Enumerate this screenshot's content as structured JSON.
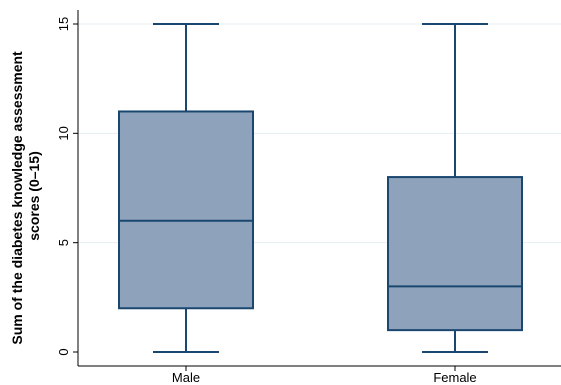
{
  "chart_data": {
    "type": "box",
    "title": "",
    "xlabel": "",
    "ylabel_lines": [
      "Sum of the diabetes knowledge assessment",
      "scores (0–15)"
    ],
    "categories": [
      "Male",
      "Female"
    ],
    "boxes": [
      {
        "category": "Male",
        "min": 0,
        "q1": 2,
        "median": 6,
        "q3": 11,
        "max": 15
      },
      {
        "category": "Female",
        "min": 0,
        "q1": 1,
        "median": 3,
        "q3": 8,
        "max": 15
      }
    ],
    "ylim": [
      0,
      15
    ],
    "yticks": [
      0,
      5,
      10,
      15
    ],
    "grid": true,
    "colors": {
      "box_fill": "#8ea3bb",
      "box_stroke": "#1a476f",
      "grid": "#e6eef3"
    }
  }
}
